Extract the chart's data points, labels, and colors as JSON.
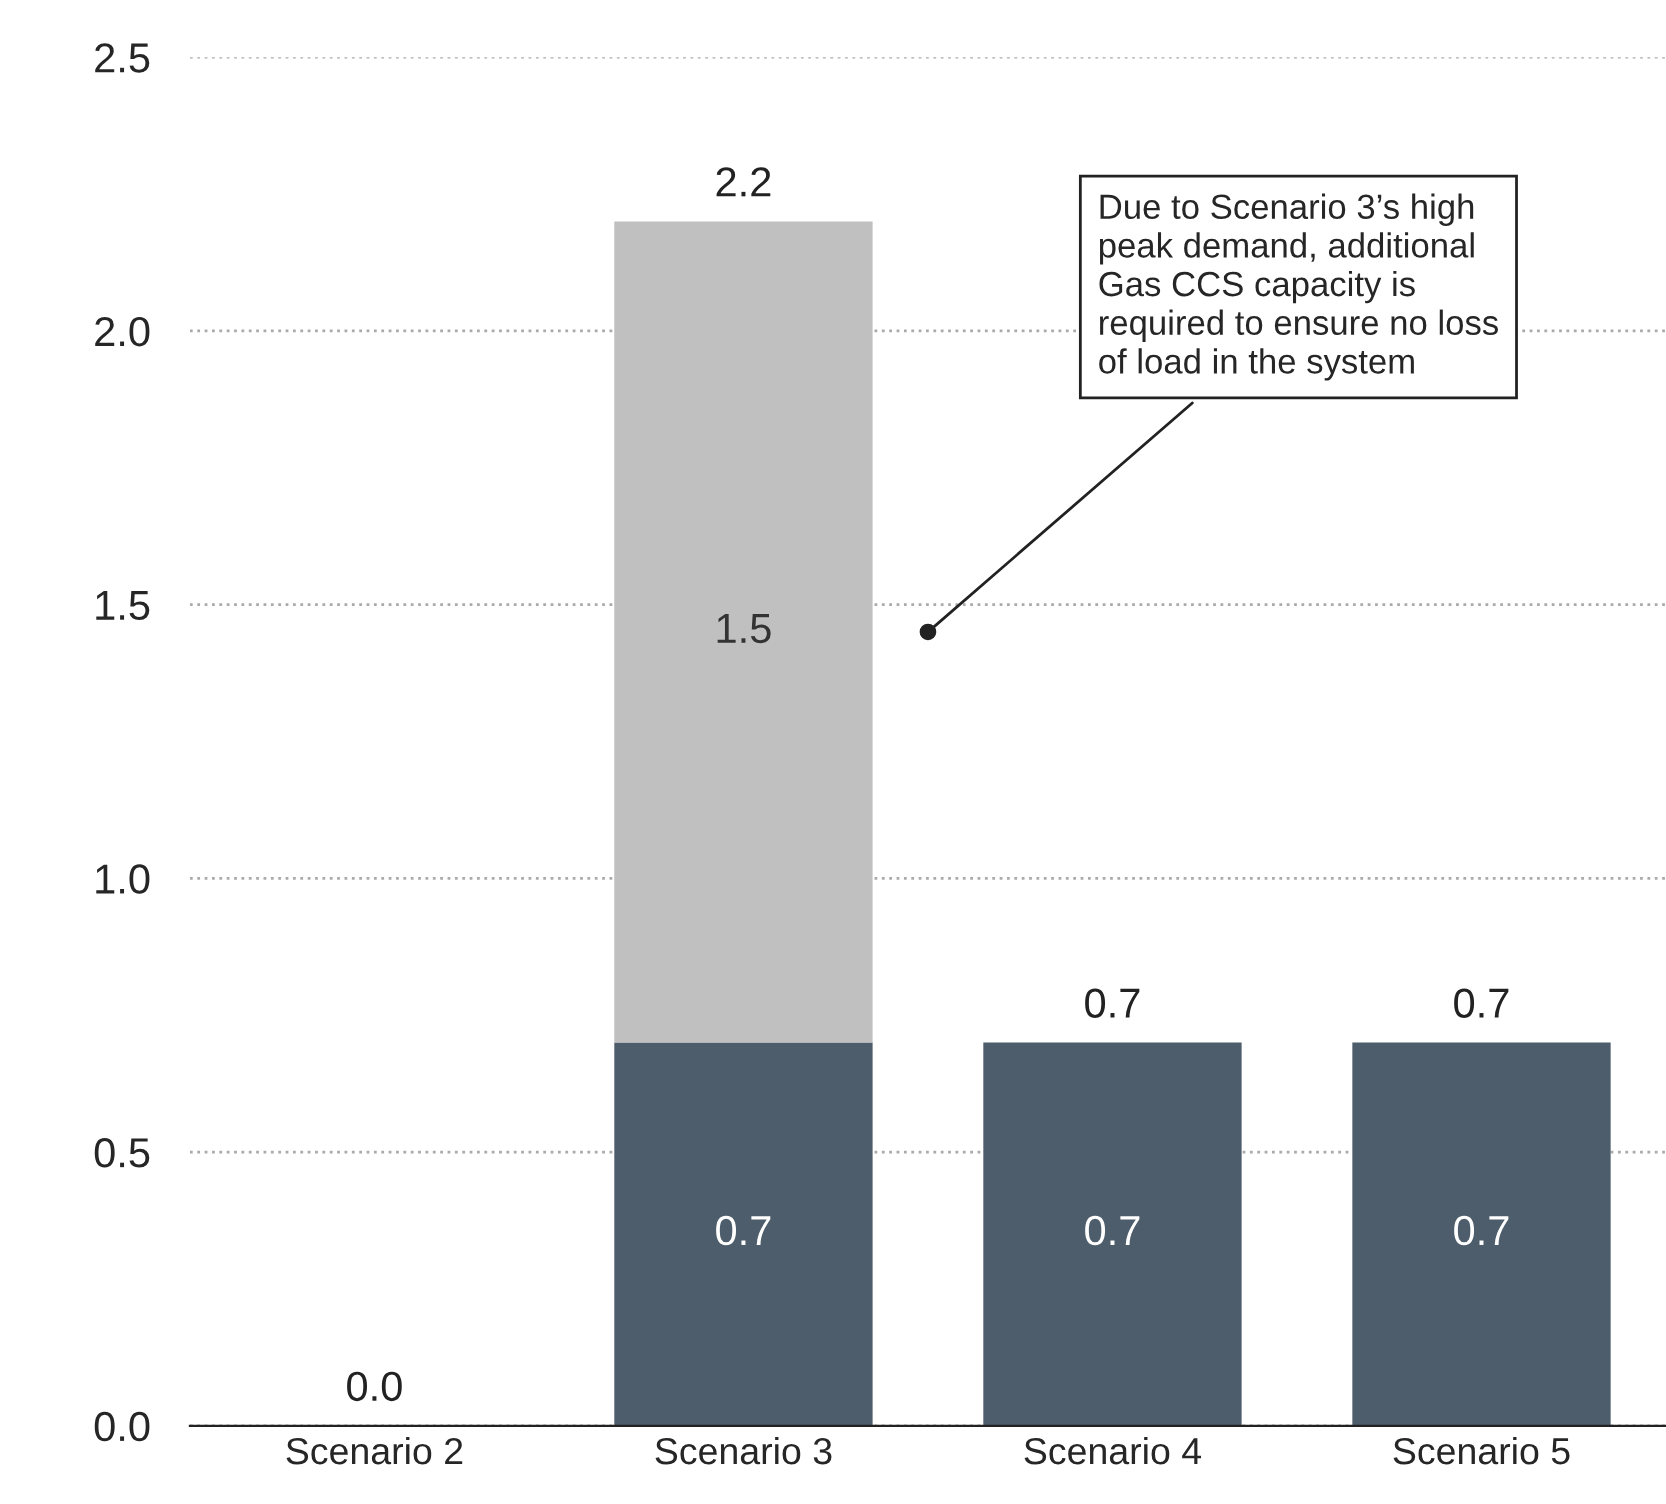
{
  "chart_data": {
    "type": "bar",
    "stacked": true,
    "categories": [
      "Scenario 2",
      "Scenario 3",
      "Scenario 4",
      "Scenario 5"
    ],
    "series": [
      {
        "color": "#4d5d6b",
        "values": [
          0.0,
          0.7,
          0.7,
          0.7
        ],
        "value_labels": [
          null,
          "0.7",
          "0.7",
          "0.7"
        ]
      },
      {
        "color": "#c0c0c0",
        "values": [
          null,
          1.5,
          null,
          null
        ],
        "value_labels": [
          null,
          "1.5",
          null,
          null
        ]
      }
    ],
    "totals": [
      "0.0",
      "2.2",
      "0.7",
      "0.7"
    ],
    "ylim": [
      0,
      2.5
    ],
    "yticks": [
      {
        "value": 0,
        "label": "0.0"
      },
      {
        "value": 0.5,
        "label": "0.5"
      },
      {
        "value": 1.0,
        "label": "1.0"
      },
      {
        "value": 1.5,
        "label": "1.5"
      },
      {
        "value": 2.0,
        "label": "2.0"
      },
      {
        "value": 2.5,
        "label": "2.5"
      }
    ],
    "grid": "y",
    "annotations": [
      "Due to Scenario 3’s high\npeak demand, additional\nGas CCS capacity is\nrequired to ensure no loss\nof load in the system"
    ]
  }
}
